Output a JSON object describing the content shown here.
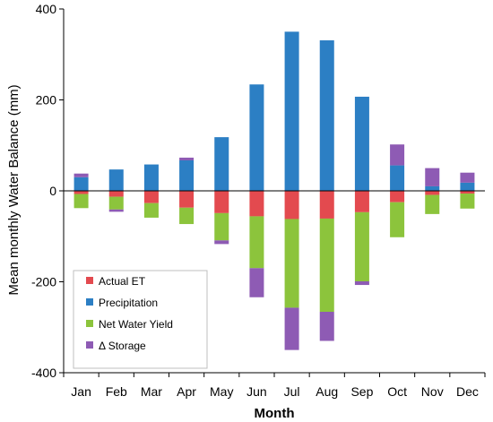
{
  "chart_data": {
    "type": "bar",
    "stacked": true,
    "categories": [
      "Jan",
      "Feb",
      "Mar",
      "Apr",
      "May",
      "Jun",
      "Jul",
      "Aug",
      "Sep",
      "Oct",
      "Nov",
      "Dec"
    ],
    "xlabel": "Month",
    "ylabel": "Mean monthly Water Balance (mm)",
    "ylim": [
      -400,
      400
    ],
    "yticks": [
      -400,
      -200,
      0,
      200,
      400
    ],
    "grid": false,
    "legend_position": "bottom-left",
    "series": [
      {
        "name": "Actual ET",
        "color": "#e34a4f",
        "values": [
          -7,
          -13,
          -27,
          -37,
          -49,
          -56,
          -62,
          -61,
          -47,
          -25,
          -9,
          -6
        ]
      },
      {
        "name": "Precipitation",
        "color": "#2c7fc4",
        "values": [
          30,
          47,
          58,
          67,
          118,
          234,
          350,
          331,
          207,
          56,
          10,
          18
        ]
      },
      {
        "name": "Net Water Yield",
        "color": "#8cc43c",
        "values": [
          -31,
          -28,
          -32,
          -36,
          -60,
          -114,
          -195,
          -205,
          -152,
          -77,
          -42,
          -33
        ]
      },
      {
        "name": "Δ Storage",
        "color": "#8e5bb4",
        "values": [
          8,
          -5,
          0,
          6,
          -8,
          -64,
          -93,
          -64,
          -8,
          46,
          40,
          22
        ]
      }
    ]
  }
}
